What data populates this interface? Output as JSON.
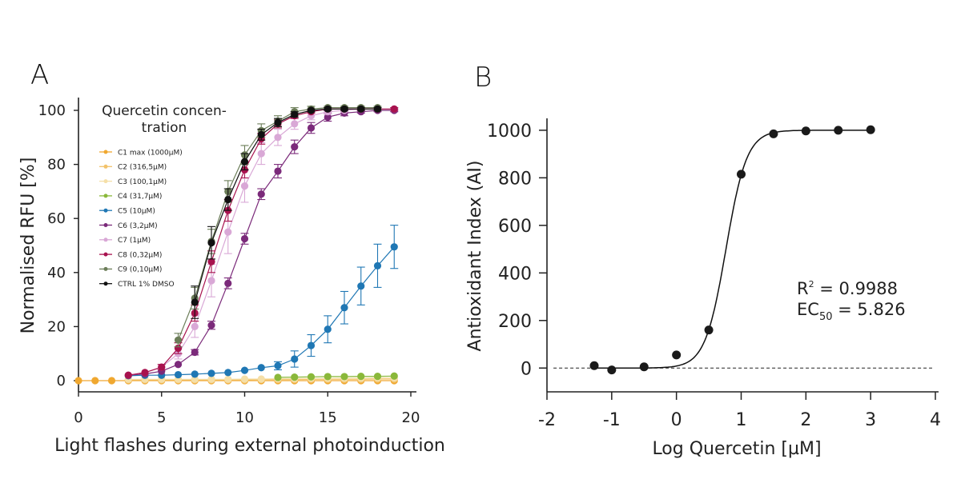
{
  "chart_data": [
    {
      "panel": "A",
      "type": "line",
      "xlabel": "Light flashes during external photoinduction",
      "ylabel": "Normalised RFU [%]",
      "xlim": [
        0,
        20
      ],
      "ylim": [
        0,
        100
      ],
      "xticks": [
        0,
        5,
        10,
        15,
        20
      ],
      "yticks": [
        0,
        20,
        40,
        60,
        80,
        100
      ],
      "legend_title": [
        "Quercetin concen-",
        "tration"
      ],
      "legend_position": "top-left",
      "series": [
        {
          "name": "C1 max (1000µM)",
          "color": "#f0a830",
          "marker": "circle",
          "x": [
            0,
            1,
            2,
            3,
            4,
            5,
            6,
            7,
            8,
            9,
            10,
            11,
            12,
            13,
            14,
            15,
            16,
            17,
            18,
            19
          ],
          "y": [
            0,
            0,
            0,
            0,
            0,
            0,
            0,
            0,
            0,
            0,
            0,
            0,
            0,
            0,
            0,
            0,
            0,
            0,
            0,
            0
          ]
        },
        {
          "name": "C2 (316,5µM)",
          "color": "#f2c26a",
          "marker": "circle",
          "x": [
            3,
            4,
            5,
            6,
            7,
            8,
            9,
            10,
            11,
            12,
            13,
            14,
            15,
            16,
            17,
            18,
            19
          ],
          "y": [
            0.3,
            0.3,
            0.3,
            0.3,
            0.3,
            0.3,
            0.3,
            0.3,
            0.4,
            0.4,
            0.4,
            0.5,
            0.5,
            0.5,
            0.5,
            0.6,
            0.6
          ]
        },
        {
          "name": "C3 (100,1µM)",
          "color": "#f5dfa8",
          "marker": "circle",
          "x": [
            3,
            4,
            5,
            6,
            7,
            8,
            9,
            10,
            11,
            12,
            13,
            14,
            15,
            16,
            17,
            18,
            19
          ],
          "y": [
            0.5,
            0.5,
            0.5,
            0.5,
            0.5,
            0.5,
            0.5,
            0.6,
            0.6,
            0.7,
            0.7,
            0.8,
            0.8,
            0.9,
            0.9,
            1.0,
            1.0
          ]
        },
        {
          "name": "C4 (31,7µM)",
          "color": "#8ab83a",
          "marker": "circle",
          "x": [
            12,
            13,
            14,
            15,
            16,
            17,
            18,
            19
          ],
          "y": [
            1.2,
            1.3,
            1.4,
            1.5,
            1.5,
            1.6,
            1.6,
            1.7
          ]
        },
        {
          "name": "C5 (10µM)",
          "color": "#1f77b4",
          "marker": "circle",
          "x": [
            3,
            4,
            5,
            6,
            7,
            8,
            9,
            10,
            11,
            12,
            13,
            14,
            15,
            16,
            17,
            18,
            19
          ],
          "y": [
            1.8,
            2,
            2,
            2.2,
            2.4,
            2.7,
            3,
            3.8,
            4.8,
            5.5,
            8,
            13,
            19,
            27,
            35,
            42.5,
            49.5
          ],
          "err": [
            0,
            0,
            0,
            0,
            0,
            0,
            0,
            0,
            0,
            1.5,
            3,
            4,
            5,
            6,
            7,
            8,
            8
          ]
        },
        {
          "name": "C6 (3,2µM)",
          "color": "#7b2a7a",
          "marker": "circle",
          "x": [
            3,
            4,
            5,
            6,
            7,
            8,
            9,
            10,
            11,
            12,
            13,
            14,
            15,
            16,
            17,
            18,
            19
          ],
          "y": [
            2,
            2.5,
            3.5,
            6,
            10.5,
            20.5,
            36,
            52.5,
            69,
            77.5,
            86.5,
            93.5,
            97.5,
            99,
            99.5,
            100,
            100
          ],
          "err": [
            0,
            0,
            0,
            0,
            1,
            1.5,
            2,
            2,
            2,
            2.5,
            2.5,
            2,
            1.5,
            1,
            0.5,
            0.5,
            0.5
          ]
        },
        {
          "name": "C7 (1µM)",
          "color": "#d9a8d6",
          "marker": "circle",
          "x": [
            3,
            4,
            5,
            6,
            7,
            8,
            9,
            10,
            11,
            12,
            13,
            14,
            15,
            16,
            17,
            18,
            19
          ],
          "y": [
            2,
            3,
            5,
            10,
            20,
            37,
            55,
            72,
            84,
            90,
            95,
            98,
            99.5,
            100,
            100.5,
            100.5,
            100.5
          ],
          "err": [
            0,
            0,
            1,
            2,
            4,
            6,
            8,
            6,
            4,
            3,
            2,
            1.5,
            1,
            0.5,
            0.5,
            0.5,
            0.5
          ]
        },
        {
          "name": "C8 (0,32µM)",
          "color": "#a8124e",
          "marker": "circle",
          "x": [
            3,
            4,
            5,
            6,
            7,
            8,
            9,
            10,
            11,
            12,
            13,
            14,
            15,
            16,
            17,
            18,
            19
          ],
          "y": [
            2,
            3,
            5,
            12,
            25,
            44,
            63,
            78,
            89.5,
            95,
            98,
            99.5,
            100.5,
            100.5,
            100.5,
            100.5,
            100.5
          ],
          "err": [
            0,
            0,
            1,
            2,
            3,
            4,
            4,
            3,
            2,
            1.5,
            1,
            0.5,
            0.5,
            0.5,
            0.5,
            0.5,
            0.5
          ]
        },
        {
          "name": "C9 (0,10µM)",
          "color": "#6b7d58",
          "marker": "circle",
          "x": [
            6,
            7,
            8,
            9,
            10,
            11,
            12,
            13,
            14,
            15,
            16,
            17,
            18
          ],
          "y": [
            15,
            30.5,
            51.5,
            70,
            83.5,
            92.5,
            96,
            99.5,
            100.5,
            101,
            101,
            101,
            101
          ],
          "err": [
            2.5,
            4,
            4.5,
            4,
            3.5,
            2.5,
            2,
            1.5,
            1,
            0.5,
            0.5,
            0.5,
            0.5
          ]
        },
        {
          "name": "CTRL 1% DMSO",
          "color": "#111111",
          "marker": "circle",
          "x": [
            7,
            8,
            9,
            10,
            11,
            12,
            13,
            14,
            15,
            16,
            17,
            18
          ],
          "y": [
            29,
            51,
            67,
            81,
            91,
            95.5,
            98.5,
            100,
            100.5,
            100.5,
            100.5,
            100.5
          ],
          "err": [
            6,
            6,
            4,
            3,
            2,
            1.5,
            1,
            0.5,
            0.5,
            0.5,
            0.5,
            0.5
          ]
        }
      ]
    },
    {
      "panel": "B",
      "type": "scatter",
      "xlabel": "Log Quercetin [µM]",
      "ylabel": "Antioxidant Index (AI)",
      "xlim": [
        -2,
        4
      ],
      "ylim": [
        -100,
        1050
      ],
      "xticks": [
        -2,
        -1,
        0,
        1,
        2,
        3,
        4
      ],
      "yticks": [
        0,
        200,
        400,
        600,
        800,
        1000
      ],
      "points": {
        "x": [
          -1.27,
          -1,
          -0.5,
          0,
          0.5,
          1,
          1.5,
          2,
          2.5,
          3
        ],
        "y": [
          10,
          -8,
          5,
          55,
          160,
          815,
          985,
          997,
          1000,
          1002
        ]
      },
      "fit": {
        "bottom": 0,
        "top": 1000,
        "logEC50": 0.765,
        "hill": 2.7
      },
      "reference_line_y": 0,
      "annotation": {
        "r2_label": "R",
        "r2_sup": "2",
        "r2_value": " = 0.9988",
        "ec_label": "EC",
        "ec_sub": "50",
        "ec_value": " = 5.826"
      }
    }
  ],
  "panel_labels": {
    "a": "A",
    "b": "B"
  }
}
